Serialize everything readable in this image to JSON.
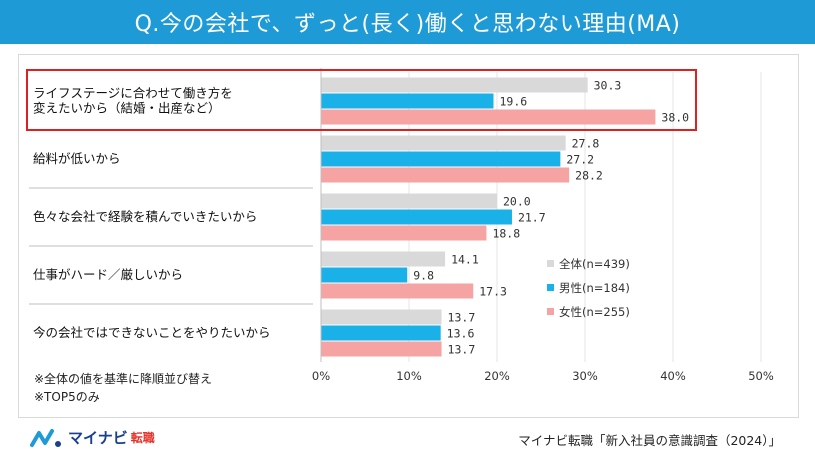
{
  "header": {
    "title": "Q.今の会社で、ずっと(長く)働くと思わない理由(MA)"
  },
  "chart_data": {
    "type": "bar",
    "orientation": "horizontal",
    "title": "Q.今の会社で、ずっと(長く)働くと思わない理由(MA)",
    "categories": [
      [
        "ライフステージに合わせて働き方を",
        "変えたいから（結婚・出産など）"
      ],
      [
        "給料が低いから"
      ],
      [
        "色々な会社で経験を積んでいきたいから"
      ],
      [
        "仕事がハード／厳しいから"
      ],
      [
        "今の会社ではできないことをやりたいから"
      ]
    ],
    "series": [
      {
        "name": "全体(n=439)",
        "color": "#d9d9d9",
        "values": [
          30.3,
          27.8,
          20.0,
          14.1,
          13.7
        ]
      },
      {
        "name": "男性(n=184)",
        "color": "#1ab0e8",
        "values": [
          19.6,
          27.2,
          21.7,
          9.8,
          13.6
        ]
      },
      {
        "name": "女性(n=255)",
        "color": "#f5a3a3",
        "values": [
          38.0,
          28.2,
          18.8,
          17.3,
          13.7
        ]
      }
    ],
    "xlim": [
      0,
      50
    ],
    "xticks": [
      0,
      10,
      20,
      30,
      40,
      50
    ],
    "tick_suffix": "%",
    "highlight_index": 0,
    "highlight_color": "#e02020",
    "legend_position": "right-middle",
    "grid": true
  },
  "notes": [
    "※全体の値を基準に降順並び替え",
    "※TOP5のみ"
  ],
  "logo": {
    "brand": "マイナビ",
    "sub": "転職"
  },
  "source": "マイナビ転職「新入社員の意識調査（2024）」"
}
